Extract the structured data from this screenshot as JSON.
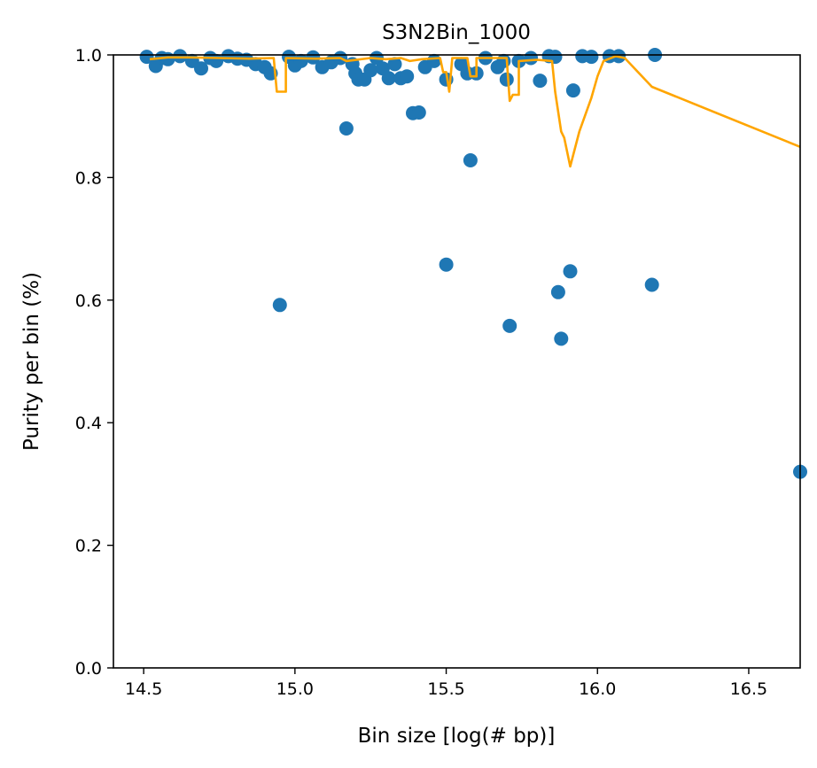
{
  "chart_data": {
    "type": "scatter",
    "title": "S3N2Bin_1000",
    "xlabel": "Bin size [log(# bp)]",
    "ylabel": "Purity per bin (%)",
    "xlim": [
      14.4,
      16.67
    ],
    "ylim": [
      0.0,
      1.0
    ],
    "xticks": [
      "14.5",
      "15.0",
      "15.5",
      "16.0",
      "16.5"
    ],
    "yticks": [
      "0.0",
      "0.2",
      "0.4",
      "0.6",
      "0.8",
      "1.0"
    ],
    "grid": false,
    "colors": {
      "points": "#1f77b4",
      "line": "#ffa500"
    },
    "series": [
      {
        "kind": "scatter",
        "points": [
          [
            14.51,
            0.997
          ],
          [
            14.54,
            0.982
          ],
          [
            14.56,
            0.995
          ],
          [
            14.58,
            0.993
          ],
          [
            14.62,
            0.998
          ],
          [
            14.66,
            0.99
          ],
          [
            14.69,
            0.978
          ],
          [
            14.72,
            0.995
          ],
          [
            14.74,
            0.99
          ],
          [
            14.78,
            0.998
          ],
          [
            14.81,
            0.994
          ],
          [
            14.84,
            0.992
          ],
          [
            14.87,
            0.985
          ],
          [
            14.9,
            0.98
          ],
          [
            14.92,
            0.97
          ],
          [
            14.95,
            0.592
          ],
          [
            14.98,
            0.997
          ],
          [
            15.0,
            0.983
          ],
          [
            15.02,
            0.99
          ],
          [
            15.06,
            0.996
          ],
          [
            15.09,
            0.98
          ],
          [
            15.12,
            0.988
          ],
          [
            15.15,
            0.995
          ],
          [
            15.17,
            0.88
          ],
          [
            15.19,
            0.985
          ],
          [
            15.2,
            0.97
          ],
          [
            15.21,
            0.96
          ],
          [
            15.23,
            0.96
          ],
          [
            15.25,
            0.975
          ],
          [
            15.27,
            0.995
          ],
          [
            15.29,
            0.978
          ],
          [
            15.31,
            0.962
          ],
          [
            15.33,
            0.985
          ],
          [
            15.35,
            0.962
          ],
          [
            15.37,
            0.965
          ],
          [
            15.39,
            0.905
          ],
          [
            15.41,
            0.906
          ],
          [
            15.43,
            0.98
          ],
          [
            15.46,
            0.99
          ],
          [
            15.5,
            0.96
          ],
          [
            15.5,
            0.658
          ],
          [
            15.55,
            0.985
          ],
          [
            15.57,
            0.97
          ],
          [
            15.58,
            0.828
          ],
          [
            15.6,
            0.97
          ],
          [
            15.63,
            0.995
          ],
          [
            15.67,
            0.98
          ],
          [
            15.69,
            0.99
          ],
          [
            15.7,
            0.96
          ],
          [
            15.71,
            0.558
          ],
          [
            15.74,
            0.99
          ],
          [
            15.78,
            0.995
          ],
          [
            15.81,
            0.958
          ],
          [
            15.84,
            0.998
          ],
          [
            15.86,
            0.997
          ],
          [
            15.87,
            0.613
          ],
          [
            15.88,
            0.537
          ],
          [
            15.91,
            0.647
          ],
          [
            15.92,
            0.942
          ],
          [
            15.95,
            0.998
          ],
          [
            15.98,
            0.997
          ],
          [
            16.04,
            0.998
          ],
          [
            16.07,
            0.998
          ],
          [
            16.18,
            0.625
          ],
          [
            16.19,
            1.0
          ],
          [
            16.67,
            0.32
          ]
        ]
      },
      {
        "kind": "line",
        "points": [
          [
            14.52,
            0.993
          ],
          [
            14.58,
            0.996
          ],
          [
            14.65,
            0.996
          ],
          [
            14.75,
            0.995
          ],
          [
            14.85,
            0.994
          ],
          [
            14.93,
            0.995
          ],
          [
            14.94,
            0.94
          ],
          [
            14.97,
            0.94
          ],
          [
            14.97,
            0.995
          ],
          [
            15.07,
            0.994
          ],
          [
            15.15,
            0.995
          ],
          [
            15.17,
            0.99
          ],
          [
            15.25,
            0.995
          ],
          [
            15.3,
            0.993
          ],
          [
            15.35,
            0.995
          ],
          [
            15.38,
            0.99
          ],
          [
            15.42,
            0.993
          ],
          [
            15.48,
            0.995
          ],
          [
            15.49,
            0.972
          ],
          [
            15.5,
            0.972
          ],
          [
            15.51,
            0.94
          ],
          [
            15.52,
            0.995
          ],
          [
            15.57,
            0.995
          ],
          [
            15.58,
            0.965
          ],
          [
            15.6,
            0.965
          ],
          [
            15.6,
            0.995
          ],
          [
            15.7,
            0.995
          ],
          [
            15.71,
            0.925
          ],
          [
            15.72,
            0.935
          ],
          [
            15.74,
            0.935
          ],
          [
            15.74,
            0.99
          ],
          [
            15.8,
            0.992
          ],
          [
            15.85,
            0.99
          ],
          [
            15.86,
            0.94
          ],
          [
            15.88,
            0.875
          ],
          [
            15.89,
            0.865
          ],
          [
            15.91,
            0.818
          ],
          [
            15.94,
            0.875
          ],
          [
            15.98,
            0.93
          ],
          [
            16.0,
            0.965
          ],
          [
            16.02,
            0.99
          ],
          [
            16.06,
            0.998
          ],
          [
            16.09,
            0.995
          ],
          [
            16.18,
            0.948
          ],
          [
            16.67,
            0.85
          ]
        ]
      }
    ]
  }
}
